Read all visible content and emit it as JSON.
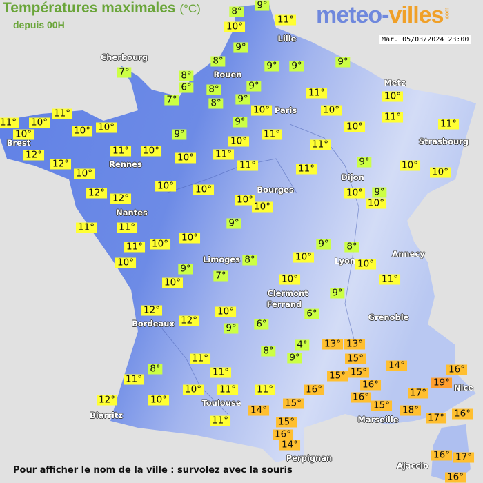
{
  "header": {
    "title": "Températures maximales",
    "unit": "(°C)",
    "subtitle": "depuis 00H",
    "logo": "meteo-villes.com",
    "logo_part1": "meteo-",
    "logo_part2": "villes",
    "logo_com": ".com",
    "datetime": "Mar. 05/03/2024 23:00"
  },
  "footer": "Pour afficher le nom de la ville : survolez avec la souris",
  "colors": {
    "land_west": "#5f80e6",
    "land_east": "#c9d4f4",
    "sea": "#e1e1e1",
    "cool": "#ccff44",
    "mild": "#ffff33",
    "warm": "#ffbf2f",
    "hot": "#ff9f2f"
  },
  "cities": [
    "Lille",
    "Cherbourg",
    "Rouen",
    "Metz",
    "Paris",
    "Brest",
    "Strasbourg",
    "Rennes",
    "Dijon",
    "Bourges",
    "Nantes",
    "Annecy",
    "Limoges",
    "Lyon",
    "Clermont",
    "Ferrand",
    "Grenoble",
    "Bordeaux",
    "Nice",
    "Toulouse",
    "Marseille",
    "Biarritz",
    "Perpignan",
    "Ajaccio"
  ],
  "temperatures": [
    "9°",
    "8°",
    "11°",
    "10°",
    "9°",
    "8°",
    "9°",
    "9°",
    "9°",
    "7°",
    "8°",
    "6°",
    "8°",
    "9°",
    "7°",
    "8°",
    "9°",
    "10°",
    "11°",
    "10°",
    "10°",
    "11°",
    "11°",
    "11°",
    "11°",
    "10°",
    "10°",
    "10°",
    "10°",
    "9°",
    "9°",
    "11°",
    "10°",
    "10°",
    "11°",
    "12°",
    "11°",
    "10°",
    "10°",
    "11°",
    "11°",
    "11°",
    "9°",
    "10°",
    "10°",
    "12°",
    "10°",
    "10°",
    "10°",
    "12°",
    "12°",
    "10°",
    "10°",
    "10°",
    "9°",
    "10°",
    "11°",
    "11°",
    "9°",
    "10°",
    "10°",
    "11°",
    "9°",
    "8°",
    "10°",
    "8°",
    "10°",
    "10°",
    "9°",
    "7°",
    "10°",
    "10°",
    "11°",
    "9°",
    "12°",
    "10°",
    "6°",
    "12°",
    "9°",
    "6°",
    "4°",
    "13°",
    "13°",
    "8°",
    "9°",
    "15°",
    "14°",
    "11°",
    "8°",
    "11°",
    "15°",
    "15°",
    "16°",
    "11°",
    "19°",
    "10°",
    "11°",
    "11°",
    "16°",
    "16°",
    "17°",
    "16°",
    "10°",
    "12°",
    "15°",
    "15°",
    "14°",
    "18°",
    "17°",
    "16°",
    "11°",
    "15°",
    "16°",
    "14°",
    "16°",
    "17°",
    "16°"
  ]
}
